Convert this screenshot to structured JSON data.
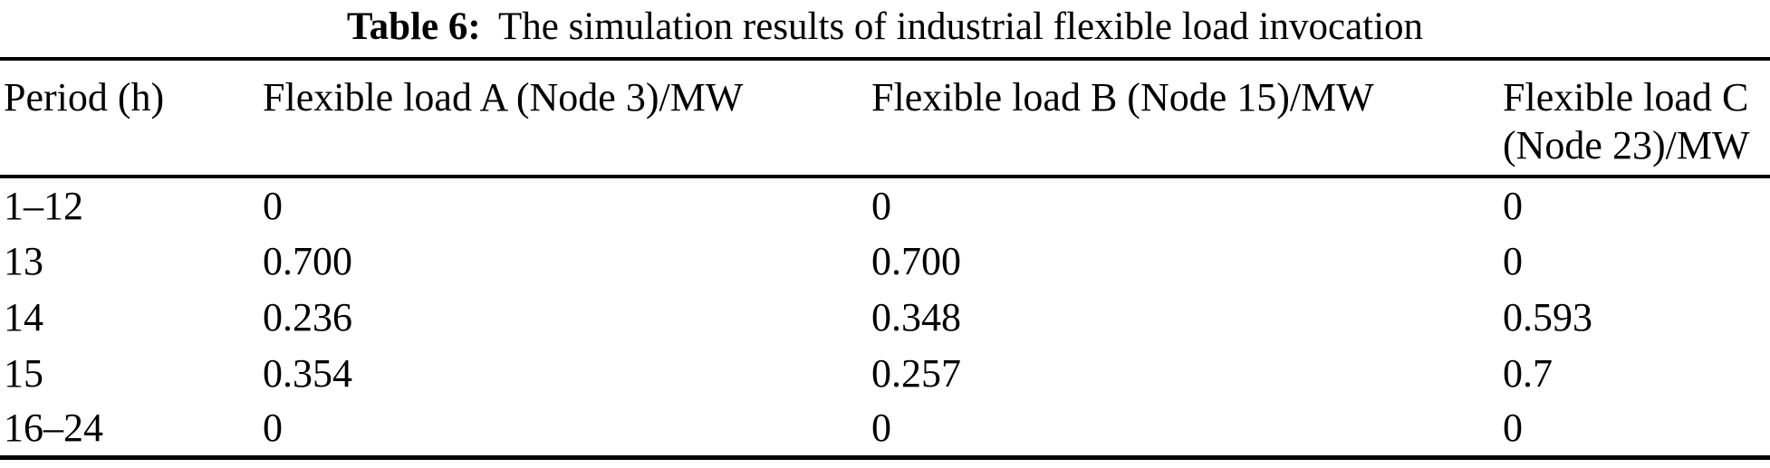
{
  "caption": {
    "label": "Table 6:",
    "title": "The simulation results of industrial flexible load invocation"
  },
  "table": {
    "columns": [
      "Period (h)",
      "Flexible load A (Node 3)/MW",
      "Flexible load B (Node 15)/MW",
      "Flexible load C\n(Node 23)/MW"
    ],
    "rows": [
      [
        "1–12",
        "0",
        "0",
        "0"
      ],
      [
        "13",
        "0.700",
        "0.700",
        "0"
      ],
      [
        "14",
        "0.236",
        "0.348",
        "0.593"
      ],
      [
        "15",
        "0.354",
        "0.257",
        "0.7"
      ],
      [
        "16–24",
        "0",
        "0",
        "0"
      ]
    ]
  }
}
